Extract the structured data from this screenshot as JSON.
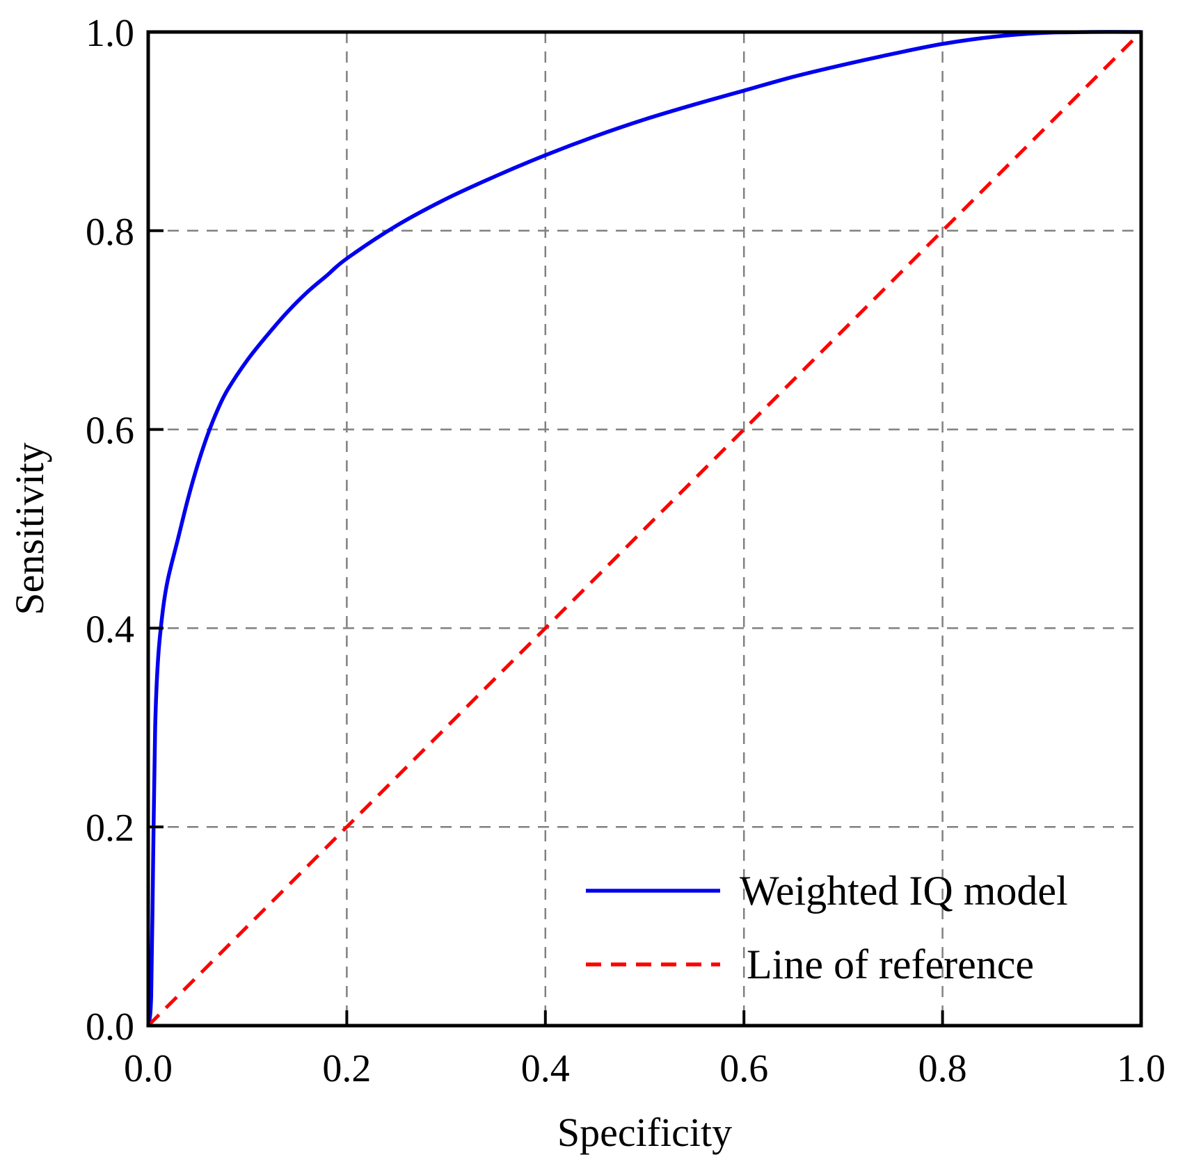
{
  "chart_data": {
    "type": "line",
    "title": "",
    "xlabel": "Specificity",
    "ylabel": "Sensitivity",
    "xlim": [
      0,
      1
    ],
    "ylim": [
      0,
      1
    ],
    "x_ticks": [
      0,
      0.2,
      0.4,
      0.6,
      0.8,
      1.0
    ],
    "y_ticks": [
      0,
      0.2,
      0.4,
      0.6,
      0.8,
      1.0
    ],
    "x_tick_labels": [
      "0.0",
      "0.2",
      "0.4",
      "0.6",
      "0.8",
      "1.0"
    ],
    "y_tick_labels": [
      "0.0",
      "0.2",
      "0.4",
      "0.6",
      "0.8",
      "1.0"
    ],
    "grid": true,
    "legend_position": "bottom-right",
    "series": [
      {
        "name": "Weighted IQ model",
        "style": "solid",
        "color": "#0000ee",
        "x": [
          0,
          0.003,
          0.005,
          0.007,
          0.01,
          0.015,
          0.02,
          0.03,
          0.04,
          0.05,
          0.06,
          0.07,
          0.08,
          0.1,
          0.12,
          0.14,
          0.16,
          0.18,
          0.2,
          0.25,
          0.3,
          0.35,
          0.4,
          0.45,
          0.5,
          0.55,
          0.6,
          0.65,
          0.7,
          0.75,
          0.8,
          0.85,
          0.9,
          0.95,
          1.0
        ],
        "y": [
          0,
          0.03,
          0.17,
          0.3,
          0.37,
          0.42,
          0.45,
          0.49,
          0.53,
          0.565,
          0.595,
          0.62,
          0.64,
          0.67,
          0.695,
          0.718,
          0.738,
          0.755,
          0.772,
          0.805,
          0.832,
          0.855,
          0.876,
          0.895,
          0.912,
          0.927,
          0.941,
          0.955,
          0.967,
          0.978,
          0.988,
          0.995,
          0.999,
          1.0,
          1.0
        ]
      },
      {
        "name": "Line of reference",
        "style": "dashed",
        "color": "#ff0000",
        "x": [
          0,
          1
        ],
        "y": [
          0,
          1
        ]
      }
    ]
  },
  "colors": {
    "grid": "#808080",
    "frame": "#000000"
  }
}
